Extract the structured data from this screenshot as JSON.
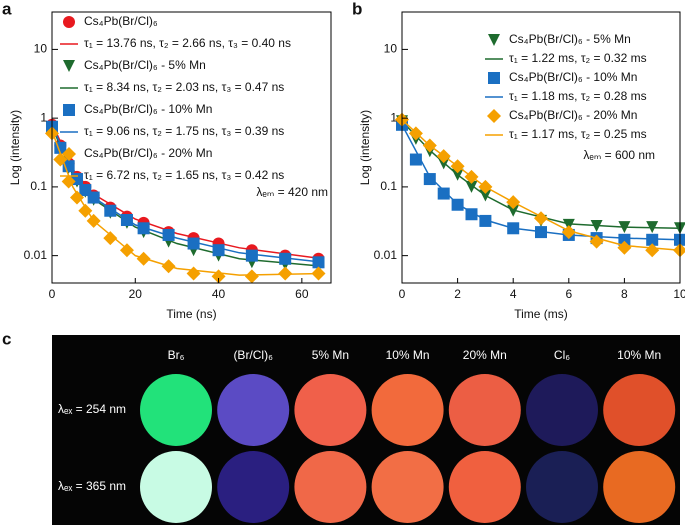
{
  "chart_data": [
    {
      "type": "scatter",
      "panel": "a",
      "xlabel": "Time (ns)",
      "ylabel": "Log (intensity)",
      "yscale": "log",
      "xlim": [
        0,
        67
      ],
      "xticks": [
        0,
        20,
        40,
        60
      ],
      "ylim": [
        0.004,
        35
      ],
      "yticks": [
        0.01,
        0.1,
        1,
        10
      ],
      "legend": "upper left",
      "annotation": "λₑₘ = 420 nm",
      "series": [
        {
          "name": "Cs₄Pb(Br/Cl)₆",
          "color": "#e8191f",
          "marker": "circle",
          "x": [
            0,
            2,
            4,
            6,
            8,
            10,
            14,
            18,
            22,
            28,
            34,
            40,
            48,
            56,
            64
          ],
          "values": [
            0.8,
            0.4,
            0.22,
            0.14,
            0.1,
            0.075,
            0.05,
            0.037,
            0.03,
            0.022,
            0.018,
            0.015,
            0.012,
            0.01,
            0.009
          ]
        },
        {
          "name": "τ₁ = 13.76 ns, τ₂ = 2.66 ns, τ₃ = 0.40 ns",
          "color": "#e8191f",
          "marker": "line",
          "x": [
            0,
            5,
            10,
            20,
            30,
            45,
            65
          ],
          "values": [
            0.85,
            0.18,
            0.078,
            0.034,
            0.021,
            0.013,
            0.009
          ]
        },
        {
          "name": "Cs₄Pb(Br/Cl)₆ - 5% Mn",
          "color": "#1e6b2e",
          "marker": "triangle",
          "x": [
            0,
            2,
            4,
            6,
            8,
            10,
            14,
            18,
            22,
            28,
            34,
            40,
            48,
            56,
            64
          ],
          "values": [
            0.7,
            0.35,
            0.19,
            0.12,
            0.085,
            0.065,
            0.042,
            0.03,
            0.022,
            0.016,
            0.012,
            0.01,
            0.008,
            0.0075,
            0.007
          ]
        },
        {
          "name": "τ₁ = 8.34 ns, τ₂ = 2.03 ns, τ₃ = 0.47 ns",
          "color": "#1e6b2e",
          "marker": "line",
          "x": [
            0,
            5,
            10,
            20,
            30,
            45,
            65
          ],
          "values": [
            0.75,
            0.15,
            0.066,
            0.026,
            0.015,
            0.009,
            0.007
          ]
        },
        {
          "name": "Cs₄Pb(Br/Cl)₆ - 10% Mn",
          "color": "#1a6fc2",
          "marker": "square",
          "x": [
            0,
            2,
            4,
            6,
            8,
            10,
            14,
            18,
            22,
            28,
            34,
            40,
            48,
            56,
            64
          ],
          "values": [
            0.75,
            0.37,
            0.2,
            0.13,
            0.09,
            0.07,
            0.045,
            0.033,
            0.025,
            0.02,
            0.015,
            0.012,
            0.01,
            0.009,
            0.008
          ]
        },
        {
          "name": "τ₁ = 9.06 ns, τ₂ = 1.75 ns, τ₃ = 0.39 ns",
          "color": "#1a6fc2",
          "marker": "line",
          "x": [
            0,
            5,
            10,
            20,
            30,
            45,
            65
          ],
          "values": [
            0.8,
            0.16,
            0.07,
            0.028,
            0.018,
            0.011,
            0.008
          ]
        },
        {
          "name": "Cs₄Pb(Br/Cl)₆ - 20% Mn",
          "color": "#f5a000",
          "marker": "diamond",
          "x": [
            0,
            2,
            4,
            6,
            8,
            10,
            14,
            18,
            22,
            28,
            34,
            40,
            48,
            56,
            64
          ],
          "values": [
            0.6,
            0.25,
            0.12,
            0.07,
            0.045,
            0.032,
            0.018,
            0.012,
            0.009,
            0.007,
            0.0055,
            0.005,
            0.005,
            0.0055,
            0.0055
          ]
        },
        {
          "name": "τ₁ = 6.72 ns, τ₂ = 1.65 ns, τ₃ = 0.42 ns",
          "color": "#f5a000",
          "marker": "line",
          "x": [
            0,
            5,
            10,
            20,
            30,
            45,
            65
          ],
          "values": [
            0.65,
            0.1,
            0.032,
            0.01,
            0.0065,
            0.0052,
            0.0055
          ]
        }
      ]
    },
    {
      "type": "scatter",
      "panel": "b",
      "xlabel": "Time (ms)",
      "ylabel": "Log (intensity)",
      "yscale": "log",
      "xlim": [
        0,
        10
      ],
      "xticks": [
        0,
        2,
        4,
        6,
        8,
        10
      ],
      "ylim": [
        0.004,
        35
      ],
      "yticks": [
        0.01,
        0.1,
        1,
        10
      ],
      "legend": "upper right",
      "annotation": "λₑₘ = 600 nm",
      "series": [
        {
          "name": "Cs₄Pb(Br/Cl)₆ - 5% Mn",
          "color": "#1e6b2e",
          "marker": "triangle",
          "x": [
            0,
            0.5,
            1,
            1.5,
            2,
            2.5,
            3,
            4,
            5,
            6,
            7,
            8,
            9,
            10
          ],
          "values": [
            0.9,
            0.5,
            0.33,
            0.22,
            0.15,
            0.1,
            0.075,
            0.045,
            0.032,
            0.028,
            0.027,
            0.026,
            0.026,
            0.025
          ]
        },
        {
          "name": "τ₁ = 1.22 ms, τ₂ = 0.32 ms",
          "color": "#1e6b2e",
          "marker": "line",
          "x": [
            0,
            1,
            2,
            3,
            4,
            6,
            8,
            10
          ],
          "values": [
            0.9,
            0.34,
            0.15,
            0.075,
            0.046,
            0.029,
            0.026,
            0.025
          ]
        },
        {
          "name": "Cs₄Pb(Br/Cl)₆ - 10% Mn",
          "color": "#1a6fc2",
          "marker": "square",
          "x": [
            0,
            0.5,
            1,
            1.5,
            2,
            2.5,
            3,
            4,
            5,
            6,
            7,
            8,
            9,
            10
          ],
          "values": [
            0.8,
            0.25,
            0.13,
            0.08,
            0.055,
            0.04,
            0.032,
            0.025,
            0.022,
            0.02,
            0.018,
            0.017,
            0.017,
            0.017
          ]
        },
        {
          "name": "τ₁ = 1.18 ms, τ₂ = 0.28 ms",
          "color": "#1a6fc2",
          "marker": "line",
          "x": [
            0,
            1,
            2,
            3,
            4,
            6,
            8,
            10
          ],
          "values": [
            0.8,
            0.14,
            0.056,
            0.033,
            0.025,
            0.02,
            0.018,
            0.017
          ]
        },
        {
          "name": "Cs₄Pb(Br/Cl)₆ - 20% Mn",
          "color": "#f5a000",
          "marker": "diamond",
          "x": [
            0,
            0.5,
            1,
            1.5,
            2,
            2.5,
            3,
            4,
            5,
            6,
            7,
            8,
            9,
            10
          ],
          "values": [
            0.95,
            0.6,
            0.4,
            0.28,
            0.2,
            0.14,
            0.1,
            0.06,
            0.035,
            0.022,
            0.016,
            0.013,
            0.012,
            0.012
          ]
        },
        {
          "name": "τ₁ = 1.17 ms, τ₂ = 0.25 ms",
          "color": "#f5a000",
          "marker": "line",
          "x": [
            0,
            1,
            2,
            3,
            4,
            6,
            8,
            10
          ],
          "values": [
            0.95,
            0.4,
            0.2,
            0.1,
            0.06,
            0.023,
            0.014,
            0.012
          ]
        }
      ]
    }
  ],
  "photo_panel": {
    "panel": "c",
    "columns": [
      "Br₆",
      "(Br/Cl)₆",
      "5% Mn",
      "10% Mn",
      "20% Mn",
      "Cl₆",
      "10% Mn"
    ],
    "rows": [
      {
        "label": "λₑₓ = 254 nm",
        "colors": [
          "#22e27a",
          "#5b4bc4",
          "#f0604a",
          "#f26a3c",
          "#ec5e44",
          "#1e1a5a",
          "#e0502a"
        ]
      },
      {
        "label": "λₑₓ = 365 nm",
        "colors": [
          "#c8fbe4",
          "#2a1f80",
          "#f06848",
          "#f26e45",
          "#f0603f",
          "#1a1f55",
          "#e86a22"
        ]
      }
    ]
  }
}
